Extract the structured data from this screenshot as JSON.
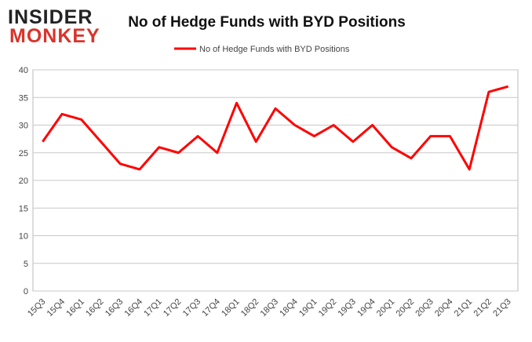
{
  "logo": [
    "INSIDER",
    "MONKEY"
  ],
  "chart_data": {
    "type": "line",
    "title": "No of Hedge Funds with BYD Positions",
    "categories": [
      "15Q3",
      "15Q4",
      "16Q1",
      "16Q2",
      "16Q3",
      "16Q4",
      "17Q1",
      "17Q2",
      "17Q3",
      "17Q4",
      "18Q1",
      "18Q2",
      "18Q3",
      "18Q4",
      "19Q1",
      "19Q2",
      "19Q3",
      "19Q4",
      "20Q1",
      "20Q2",
      "20Q3",
      "20Q4",
      "21Q1",
      "21Q2",
      "21Q3"
    ],
    "series": [
      {
        "name": "No of Hedge Funds with BYD Positions",
        "color": "#ff0000",
        "values": [
          27,
          32,
          31,
          27,
          23,
          22,
          26,
          25,
          28,
          25,
          34,
          27,
          33,
          30,
          28,
          30,
          27,
          30,
          26,
          24,
          28,
          28,
          22,
          36,
          37
        ]
      }
    ],
    "ylim": [
      0,
      40
    ],
    "yticks": [
      0,
      5,
      10,
      15,
      20,
      25,
      30,
      35,
      40
    ],
    "grid": true,
    "legend": "top"
  }
}
